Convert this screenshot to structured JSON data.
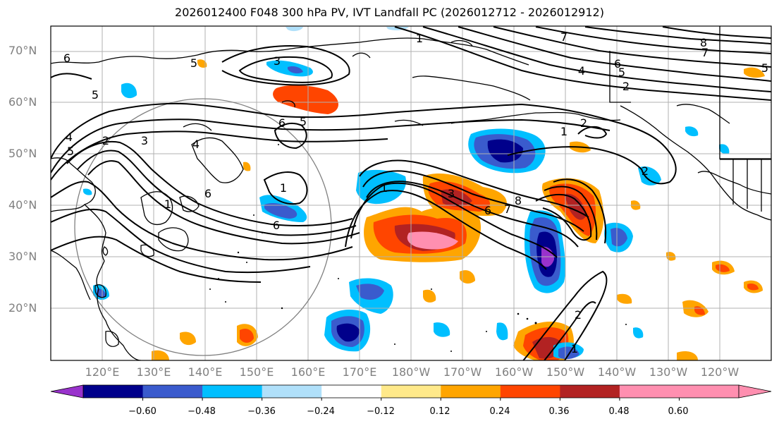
{
  "title": "2026012400 F048 300 hPa PV, IVT Landfall PC (2026012712 - 2026012912)",
  "lat_labels": [
    "70°N",
    "60°N",
    "50°N",
    "40°N",
    "30°N",
    "20°N"
  ],
  "lon_labels": [
    "120°E",
    "130°E",
    "140°E",
    "150°E",
    "160°E",
    "170°E",
    "180°W",
    "170°W",
    "160°W",
    "150°W",
    "140°W",
    "130°W",
    "120°W"
  ],
  "colorbar": {
    "ticks": [
      "−0.60",
      "−0.48",
      "−0.36",
      "−0.24",
      "−0.12",
      "0.12",
      "0.24",
      "0.36",
      "0.48",
      "0.60"
    ],
    "colors": [
      "#9932cc",
      "#00008b",
      "#3a5bcd",
      "#00bfff",
      "#b0e0fa",
      "#ffffff",
      "#ffe98a",
      "#ffa500",
      "#ff4500",
      "#b22222",
      "#ff8fb0",
      "#ff8fb0"
    ]
  },
  "contour_labels": [
    "6",
    "5",
    "4",
    "5",
    "3",
    "2",
    "1",
    "6",
    "5",
    "4",
    "3",
    "1",
    "6",
    "5",
    "1",
    "7",
    "4",
    "6",
    "5",
    "2",
    "8",
    "7",
    "5",
    "1",
    "2",
    "2",
    "6",
    "7",
    "8",
    "2",
    "1",
    "6",
    "3",
    "1"
  ],
  "colors": {
    "map_line": "#000000",
    "grid": "#b0b0b0",
    "label": "#808080"
  }
}
